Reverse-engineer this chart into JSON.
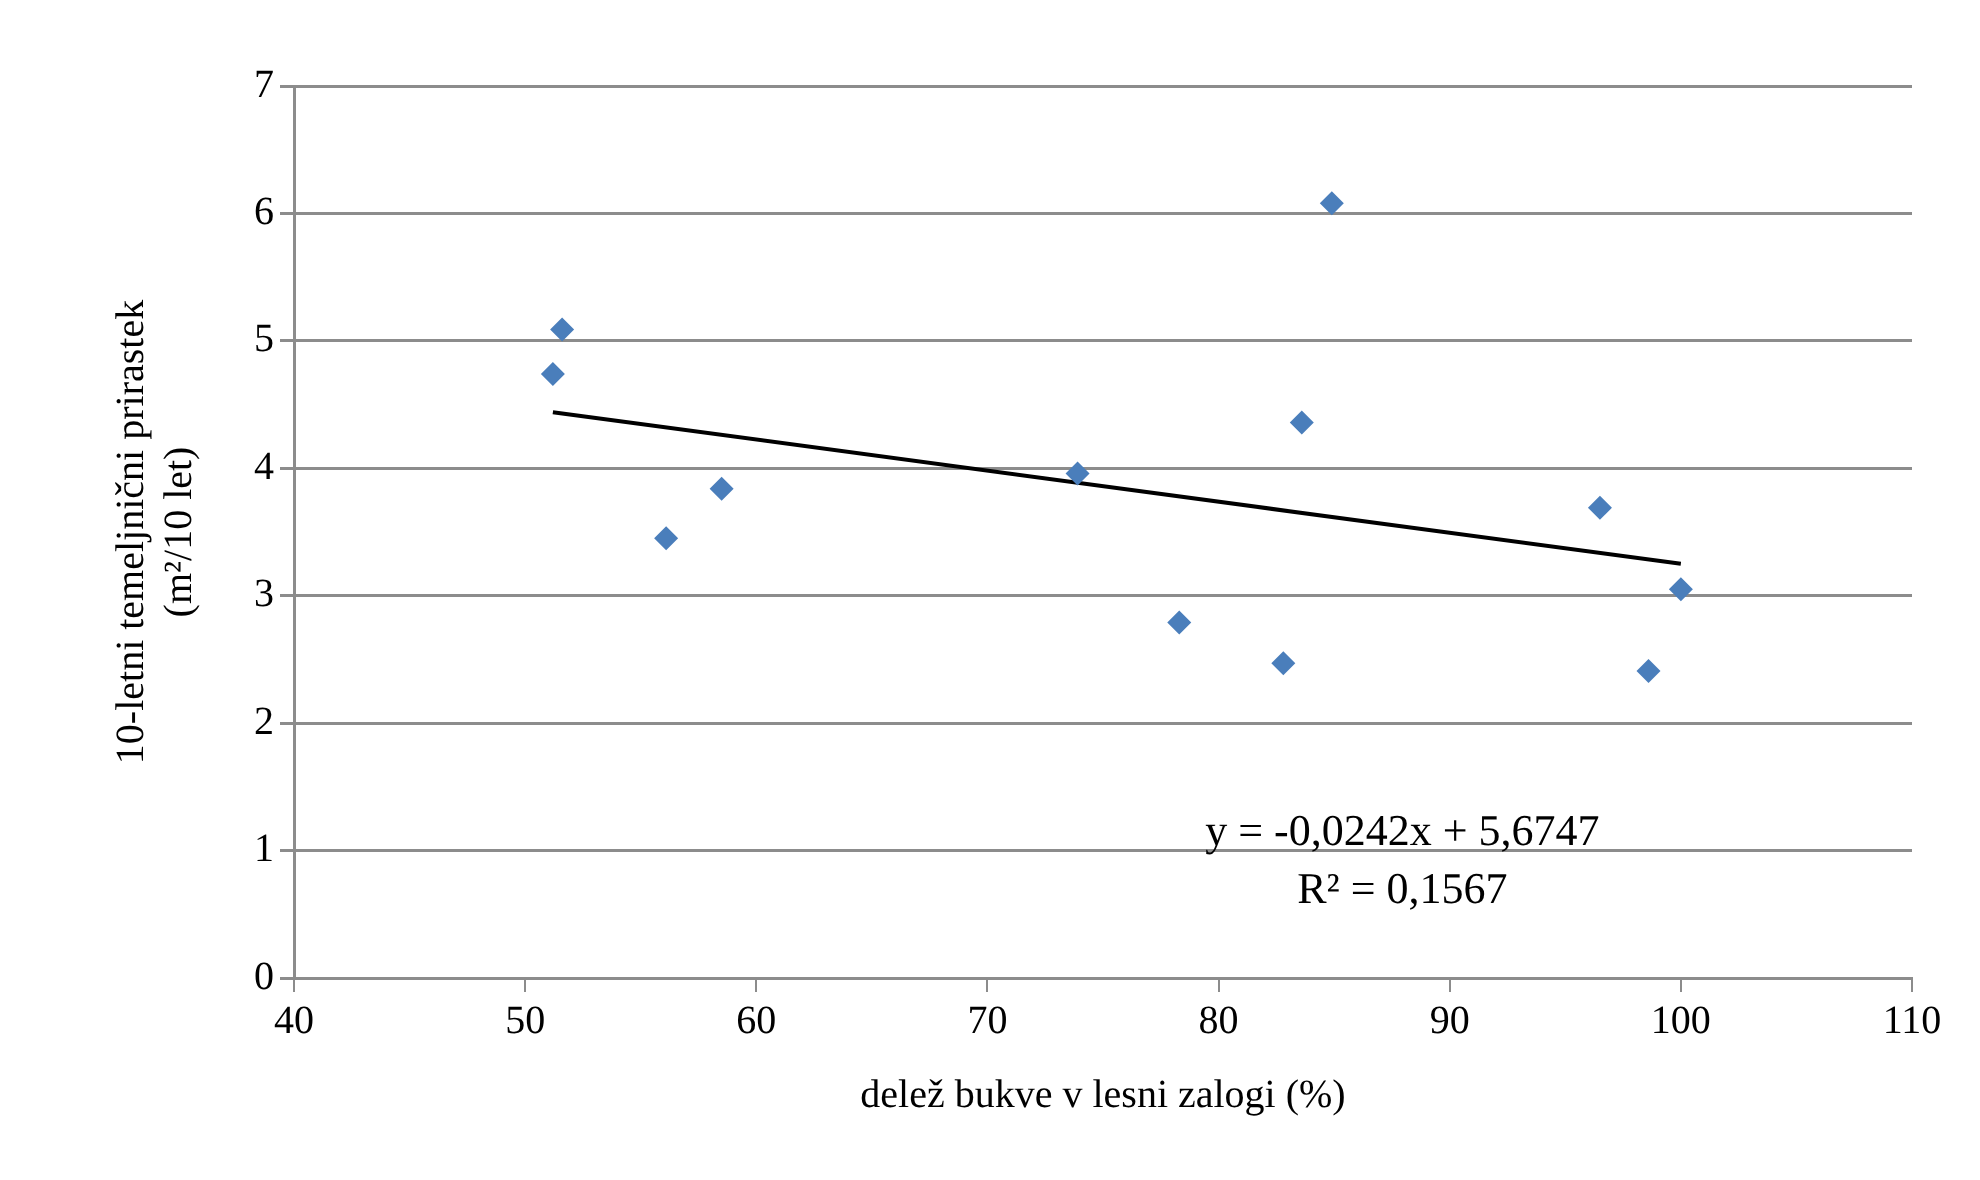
{
  "chart_data": {
    "type": "scatter",
    "xlabel": "delež bukve v lesni zalogi (%)",
    "ylabel": "10-letni temeljnični prirastek (m²/10 let)",
    "x": [
      51.2,
      51.6,
      56.1,
      58.5,
      73.9,
      78.3,
      82.8,
      83.6,
      84.9,
      96.5,
      98.6,
      100.0
    ],
    "series": [
      {
        "color": "#4a7ebb",
        "values": [
          4.74,
          5.09,
          3.45,
          3.84,
          3.96,
          2.79,
          2.47,
          4.36,
          6.08,
          3.69,
          2.41,
          3.05
        ]
      },
      {
        "type": "line",
        "marker": "none",
        "color": "#000000",
        "x": [
          51.2,
          100.0
        ],
        "values": [
          4.44,
          3.25
        ]
      }
    ],
    "xlim": [
      40,
      110
    ],
    "xticks": [
      40,
      50,
      60,
      70,
      80,
      90,
      100,
      110
    ],
    "ylim": [
      0,
      7
    ],
    "yticks": [
      0,
      1,
      2,
      3,
      4,
      5,
      6,
      7
    ],
    "grid": "y",
    "legend": false,
    "marker": "diamond",
    "annotations": [
      "y = -0,0242x + 5,6747",
      "R² = 0,1567"
    ]
  }
}
